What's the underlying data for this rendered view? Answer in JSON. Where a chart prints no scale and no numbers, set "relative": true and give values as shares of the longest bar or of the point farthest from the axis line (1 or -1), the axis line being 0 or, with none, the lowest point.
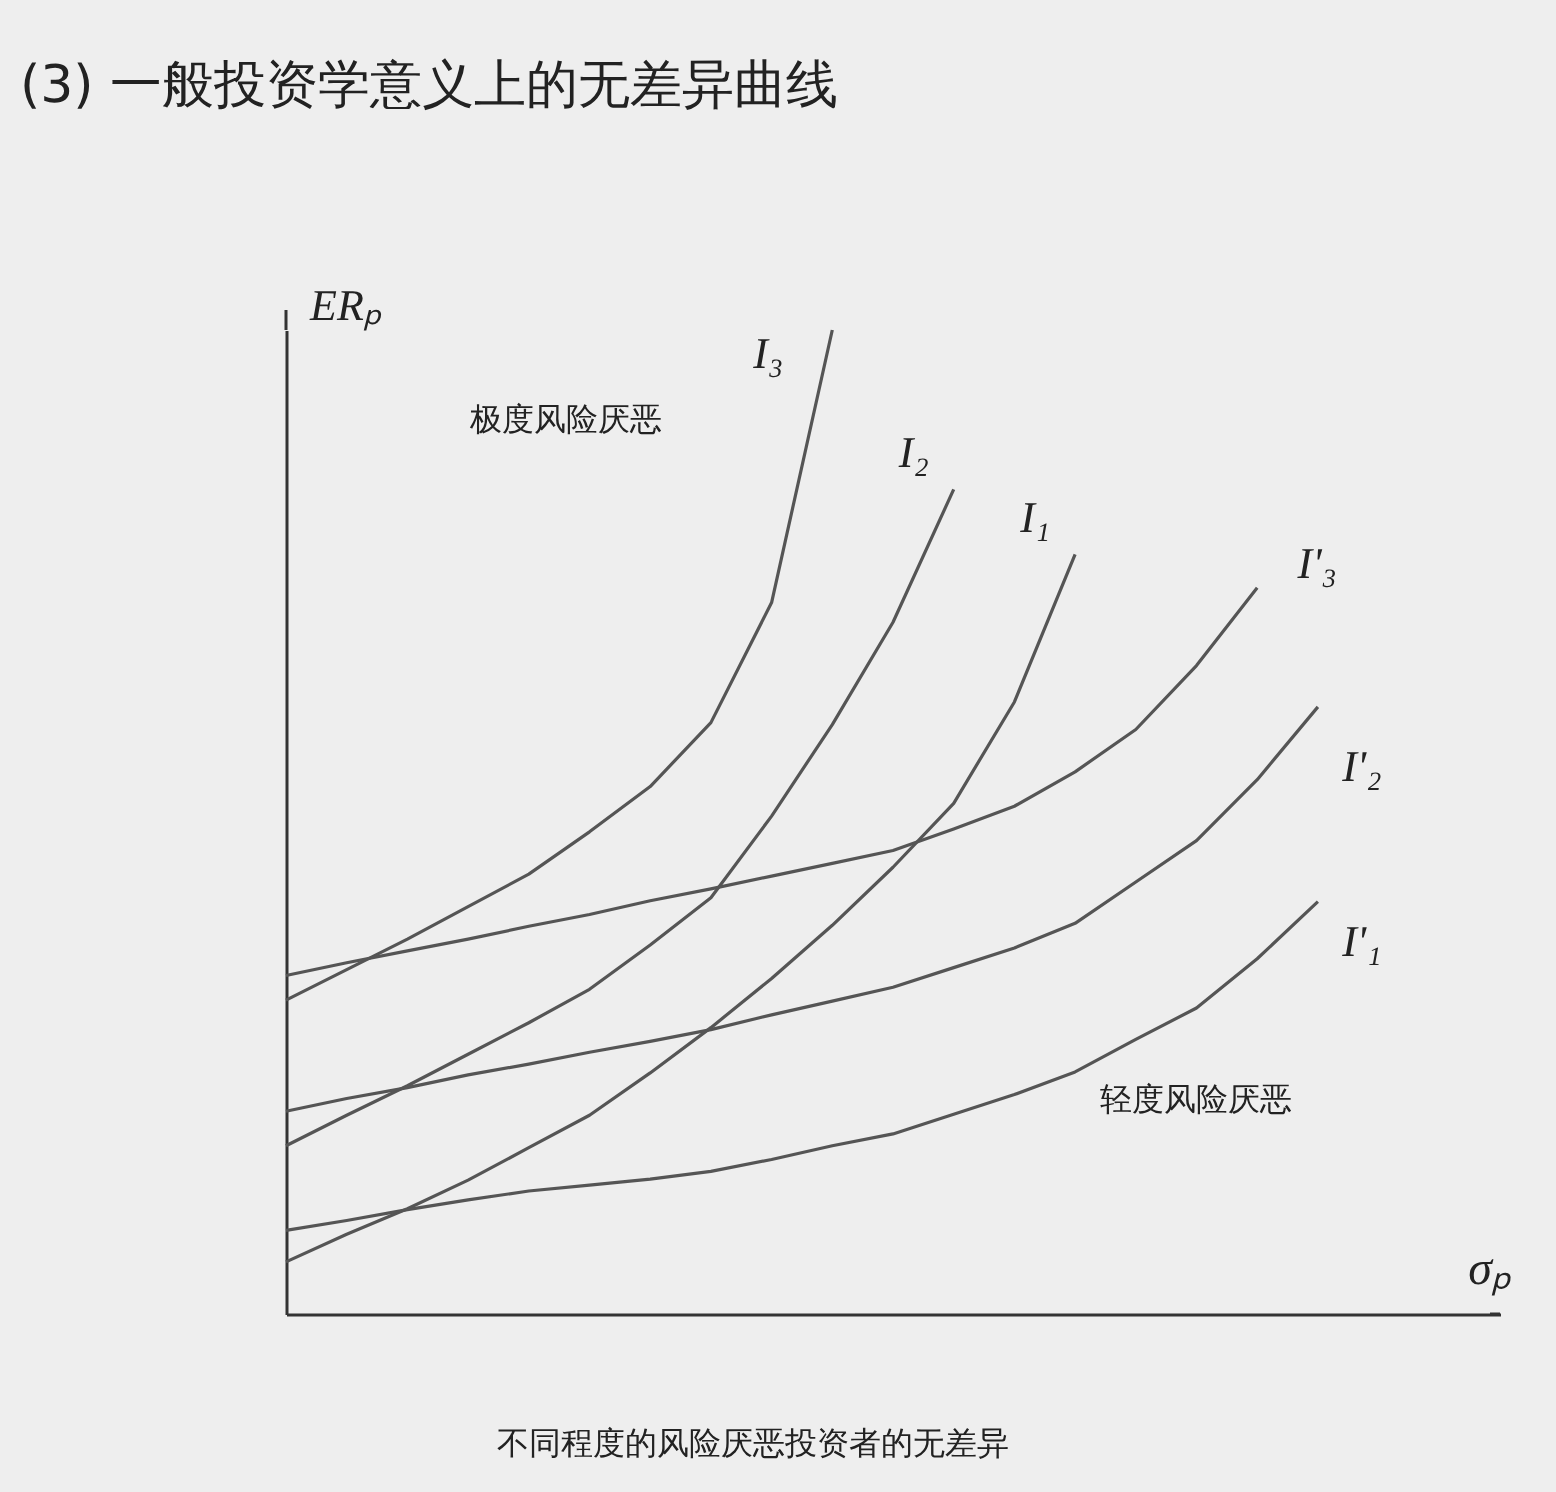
{
  "chart_data": {
    "type": "line",
    "title": "(3) 一般投资学意义上的无差异曲线",
    "xlabel": "σₚ",
    "ylabel": "ERₚ",
    "relative": true,
    "tick_labels": false,
    "grid": false,
    "legend": false,
    "marker": "none",
    "line_style": "solid",
    "annotations": [
      "极度风险厌恶",
      "轻度风险厌恶",
      "不同程度的风险厌恶投资者的无差异"
    ],
    "categories": [
      null,
      null,
      null,
      null,
      null,
      null,
      null,
      null,
      null,
      null,
      null,
      null,
      null,
      null,
      null,
      null,
      null,
      null,
      null,
      null,
      null
    ],
    "series": [
      {
        "name": "I₃",
        "color": "#555555",
        "values": [
          0.319,
          0.35,
          0.381,
          0.414,
          0.447,
          0.49,
          0.536,
          0.601,
          0.723,
          1.0,
          null,
          null,
          null,
          null,
          null,
          null,
          null,
          null,
          null,
          null,
          null
        ]
      },
      {
        "name": "I₂",
        "color": "#555555",
        "values": [
          0.171,
          0.202,
          0.232,
          0.264,
          0.296,
          0.33,
          0.375,
          0.423,
          0.506,
          0.599,
          0.703,
          0.838,
          null,
          null,
          null,
          null,
          null,
          null,
          null,
          null,
          null
        ]
      },
      {
        "name": "I₁",
        "color": "#555555",
        "values": [
          0.053,
          0.081,
          0.107,
          0.136,
          0.169,
          0.202,
          0.245,
          0.291,
          0.341,
          0.395,
          0.454,
          0.519,
          0.622,
          0.772,
          null,
          null,
          null,
          null,
          null,
          null,
          null
        ]
      },
      {
        "name": "I'₃",
        "color": "#555555",
        "values": [
          0.344,
          0.357,
          0.369,
          0.381,
          0.394,
          0.406,
          0.42,
          0.432,
          0.445,
          0.458,
          0.471,
          0.493,
          0.516,
          0.551,
          0.594,
          0.659,
          0.738,
          null,
          null,
          null,
          null
        ]
      },
      {
        "name": "I'₂",
        "color": "#555555",
        "values": [
          0.206,
          0.219,
          0.23,
          0.243,
          0.254,
          0.266,
          0.277,
          0.289,
          0.304,
          0.318,
          0.332,
          0.352,
          0.372,
          0.397,
          0.439,
          0.481,
          0.543,
          0.617,
          null,
          null,
          null
        ]
      },
      {
        "name": "I'₁",
        "color": "#555555",
        "values": [
          0.085,
          0.095,
          0.106,
          0.116,
          0.125,
          0.131,
          0.137,
          0.145,
          0.157,
          0.171,
          0.183,
          0.203,
          0.223,
          0.246,
          0.279,
          0.311,
          0.361,
          0.419,
          null,
          null,
          null
        ]
      }
    ]
  }
}
